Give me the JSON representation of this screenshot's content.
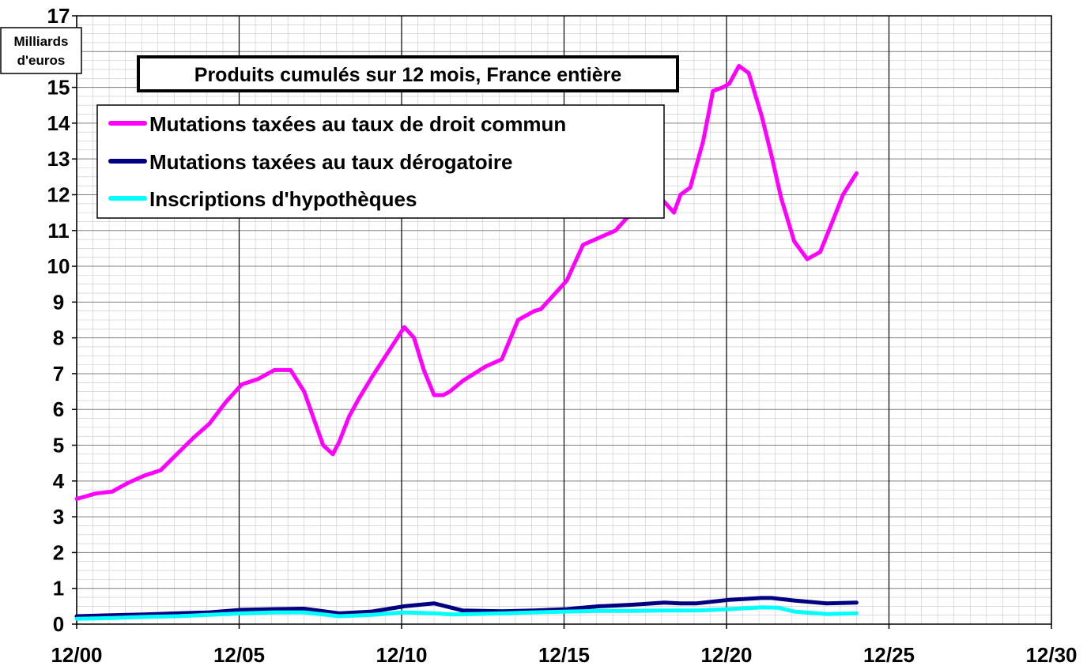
{
  "chart_data": {
    "type": "line",
    "title": "Produits cumulés sur 12 mois, France entière",
    "ylabel_lines": [
      "Milliards",
      "d'euros"
    ],
    "xlabel": "",
    "x_tick_labels": [
      "12/00",
      "12/05",
      "12/10",
      "12/15",
      "12/20",
      "12/25",
      "12/30"
    ],
    "xlim": [
      2000.917,
      2030.917
    ],
    "ylim": [
      0,
      17
    ],
    "y_ticks": [
      0,
      1,
      2,
      3,
      4,
      5,
      6,
      7,
      8,
      9,
      10,
      11,
      12,
      13,
      14,
      15,
      16,
      17
    ],
    "grid": true,
    "legend_position": "top-left",
    "series": [
      {
        "name": "Mutations taxées au taux de droit commun",
        "color": "#FF00FF",
        "x": [
          2000.917,
          2001.5,
          2002.0,
          2002.5,
          2003.0,
          2003.5,
          2004.0,
          2004.5,
          2005.0,
          2005.5,
          2006.0,
          2006.5,
          2007.0,
          2007.5,
          2007.917,
          2008.5,
          2008.8,
          2009.0,
          2009.3,
          2009.6,
          2010.0,
          2010.5,
          2011.0,
          2011.3,
          2011.6,
          2011.917,
          2012.2,
          2012.4,
          2012.8,
          2013.5,
          2014.0,
          2014.5,
          2015.0,
          2015.2,
          2015.5,
          2016.0,
          2016.5,
          2017.0,
          2017.5,
          2018.0,
          2018.5,
          2019.0,
          2019.3,
          2019.5,
          2019.8,
          2020.2,
          2020.5,
          2020.8,
          2021.0,
          2021.3,
          2021.6,
          2022.0,
          2022.3,
          2022.6,
          2023.0,
          2023.4,
          2023.8,
          2024.2,
          2024.5,
          2024.917
        ],
        "values": [
          3.5,
          3.65,
          3.7,
          3.95,
          4.15,
          4.3,
          4.75,
          5.2,
          5.6,
          6.2,
          6.7,
          6.85,
          7.1,
          7.1,
          6.5,
          5.0,
          4.75,
          5.1,
          5.8,
          6.3,
          6.9,
          7.6,
          8.3,
          8.0,
          7.1,
          6.4,
          6.4,
          6.5,
          6.8,
          7.2,
          7.4,
          8.5,
          8.75,
          8.8,
          9.1,
          9.6,
          10.6,
          10.8,
          11.0,
          11.5,
          12.3,
          11.8,
          11.5,
          12.0,
          12.2,
          13.5,
          14.9,
          15.0,
          15.1,
          15.6,
          15.4,
          14.2,
          13.1,
          11.9,
          10.7,
          10.2,
          10.4,
          11.3,
          12.0,
          12.6
        ]
      },
      {
        "name": "Mutations taxées au taux dérogatoire",
        "color": "#000080",
        "x": [
          2000.917,
          2002.0,
          2003.0,
          2004.0,
          2005.0,
          2006.0,
          2007.0,
          2007.917,
          2009.0,
          2010.0,
          2011.0,
          2011.917,
          2012.8,
          2014.0,
          2015.0,
          2016.0,
          2017.0,
          2018.0,
          2019.0,
          2019.5,
          2020.0,
          2021.0,
          2022.0,
          2022.3,
          2023.0,
          2024.0,
          2024.917
        ],
        "values": [
          0.22,
          0.25,
          0.27,
          0.3,
          0.33,
          0.4,
          0.42,
          0.43,
          0.3,
          0.35,
          0.5,
          0.58,
          0.38,
          0.36,
          0.38,
          0.42,
          0.5,
          0.54,
          0.6,
          0.58,
          0.58,
          0.68,
          0.73,
          0.73,
          0.66,
          0.58,
          0.6
        ]
      },
      {
        "name": "Inscriptions d'hypothèques",
        "color": "#00FFFF",
        "x": [
          2000.917,
          2002.0,
          2003.0,
          2004.0,
          2005.0,
          2006.0,
          2007.0,
          2007.917,
          2009.0,
          2010.0,
          2011.0,
          2011.917,
          2012.5,
          2014.0,
          2015.0,
          2016.0,
          2017.0,
          2018.0,
          2019.0,
          2020.0,
          2021.0,
          2022.0,
          2022.5,
          2023.0,
          2024.0,
          2024.917
        ],
        "values": [
          0.15,
          0.17,
          0.2,
          0.22,
          0.26,
          0.3,
          0.33,
          0.33,
          0.22,
          0.26,
          0.33,
          0.3,
          0.27,
          0.3,
          0.33,
          0.35,
          0.37,
          0.37,
          0.38,
          0.38,
          0.42,
          0.47,
          0.46,
          0.35,
          0.28,
          0.3
        ]
      }
    ]
  }
}
